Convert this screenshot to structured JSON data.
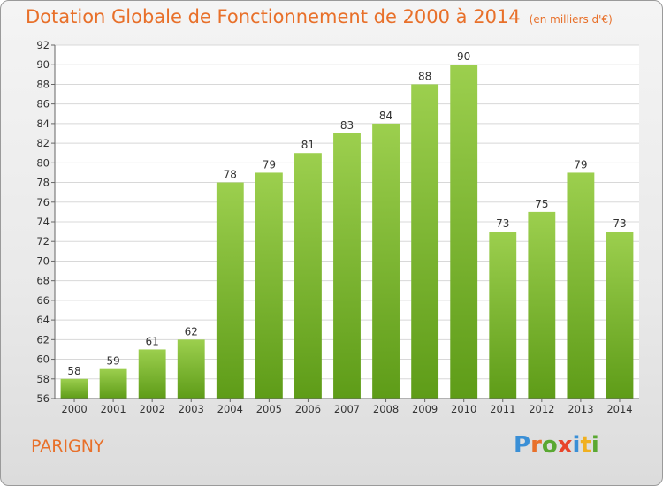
{
  "header": {
    "title": "Dotation Globale de Fonctionnement de 2000 à 2014",
    "unit": "(en milliers d'€)"
  },
  "footer": {
    "commune": "PARIGNY",
    "logo": [
      "P",
      "r",
      "o",
      "x",
      "i",
      "t",
      "i"
    ],
    "logo_colors": [
      "#3a8fd6",
      "#e8702a",
      "#5aa832",
      "#e8452a",
      "#3a8fd6",
      "#f0b020",
      "#5aa832"
    ]
  },
  "chart_data": {
    "type": "bar",
    "categories": [
      "2000",
      "2001",
      "2002",
      "2003",
      "2004",
      "2005",
      "2006",
      "2007",
      "2008",
      "2009",
      "2010",
      "2011",
      "2012",
      "2013",
      "2014"
    ],
    "values": [
      58,
      59,
      61,
      62,
      78,
      79,
      81,
      83,
      84,
      88,
      90,
      73,
      75,
      79,
      73
    ],
    "ylim": [
      56,
      92
    ],
    "yticks": [
      56,
      58,
      60,
      62,
      64,
      66,
      68,
      70,
      72,
      74,
      76,
      78,
      80,
      82,
      84,
      86,
      88,
      90,
      92
    ],
    "grid": true,
    "bar_color_top": "#9ccf4e",
    "bar_color_bottom": "#5e9c18"
  }
}
